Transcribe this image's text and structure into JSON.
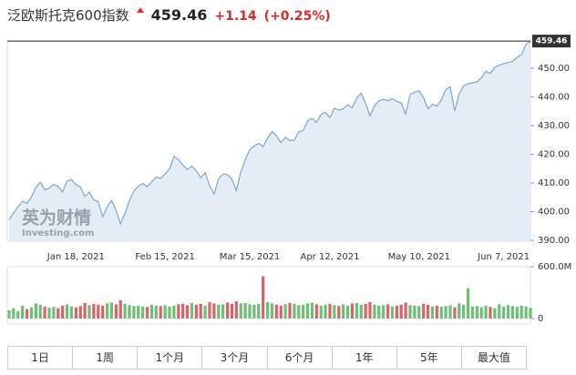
{
  "header": {
    "title": "泛欧斯托克600指数",
    "price": "459.46",
    "change": "+1.14",
    "change_pct": "(+0.25%)"
  },
  "chart_data": [
    {
      "type": "area",
      "watermark": "英为财情",
      "watermark_sub": "Investing.com",
      "categories": [
        null,
        null,
        null,
        null,
        null,
        null,
        null,
        null,
        null,
        null,
        null,
        null,
        null,
        null,
        null,
        "Jan 18, 2021",
        null,
        null,
        null,
        null,
        null,
        null,
        null,
        null,
        null,
        null,
        null,
        null,
        null,
        null,
        null,
        null,
        null,
        null,
        null,
        "Feb 15, 2021",
        null,
        null,
        null,
        null,
        null,
        null,
        null,
        null,
        null,
        null,
        null,
        null,
        null,
        null,
        null,
        null,
        null,
        null,
        "Mar 15, 2021",
        null,
        null,
        null,
        null,
        null,
        null,
        null,
        null,
        null,
        null,
        null,
        null,
        null,
        null,
        null,
        null,
        null,
        "Apr 12, 2021",
        null,
        null,
        null,
        null,
        null,
        null,
        null,
        null,
        null,
        null,
        null,
        null,
        null,
        null,
        null,
        null,
        null,
        null,
        null,
        "May 10, 2021",
        null,
        null,
        null,
        null,
        null,
        null,
        null,
        null,
        null,
        null,
        null,
        null,
        null,
        null,
        null,
        null,
        null,
        null,
        "Jun 7, 2021",
        null,
        null,
        null,
        null,
        null,
        null
      ],
      "values": [
        397.2,
        399.5,
        401.8,
        403.6,
        402.9,
        405.1,
        408.4,
        410.3,
        407.6,
        408.2,
        409.5,
        408.8,
        406.9,
        410.7,
        411.2,
        409.4,
        408.6,
        405.3,
        406.8,
        404.1,
        403.5,
        398.2,
        401.7,
        403.9,
        400.6,
        395.8,
        399.4,
        403.7,
        407.2,
        408.9,
        409.8,
        408.7,
        410.4,
        412.1,
        411.6,
        413.2,
        414.8,
        419.3,
        418.1,
        416.2,
        414.7,
        415.9,
        414.2,
        411.8,
        413.6,
        409.1,
        406.2,
        411.5,
        413.1,
        412.9,
        411.4,
        407.3,
        413.8,
        418.2,
        421.6,
        422.9,
        423.8,
        422.7,
        425.6,
        427.9,
        426.4,
        424.1,
        425.9,
        424.8,
        424.9,
        427.8,
        428.3,
        431.7,
        432.5,
        431.2,
        433.9,
        434.6,
        432.8,
        436.1,
        435.4,
        435.9,
        437.3,
        436.2,
        439.5,
        441.3,
        437.8,
        433.4,
        436.9,
        438.6,
        439.2,
        438.7,
        439.4,
        438.5,
        437.9,
        434.1,
        440.8,
        441.6,
        442.1,
        439.7,
        435.9,
        437.4,
        436.8,
        438.9,
        442.7,
        443.5,
        435.2,
        441.1,
        443.8,
        444.6,
        444.9,
        445.3,
        446.7,
        448.9,
        448.2,
        450.3,
        451.1,
        451.6,
        452.0,
        452.4,
        453.8,
        454.7,
        458.32,
        459.46
      ],
      "color": "#7ea7cb",
      "fill": "#e4edf5",
      "ylim": [
        389.7,
        459.5
      ],
      "yticks": [
        {
          "value": 390,
          "label": "390.00"
        },
        {
          "value": 400,
          "label": "400.00"
        },
        {
          "value": 410,
          "label": "410.00"
        },
        {
          "value": 420,
          "label": "420.00"
        },
        {
          "value": 430,
          "label": "430.00"
        },
        {
          "value": 440,
          "label": "440.00"
        },
        {
          "value": 450,
          "label": "450.00"
        }
      ]
    },
    {
      "type": "bar",
      "values": [
        95,
        120,
        85,
        150,
        110,
        130,
        175,
        160,
        140,
        125,
        135,
        120,
        150,
        165,
        140,
        130,
        145,
        180,
        155,
        170,
        160,
        150,
        175,
        185,
        165,
        210,
        170,
        155,
        145,
        150,
        140,
        135,
        160,
        150,
        145,
        155,
        140,
        150,
        165,
        170,
        155,
        180,
        160,
        170,
        150,
        190,
        175,
        160,
        165,
        185,
        170,
        200,
        175,
        180,
        165,
        160,
        170,
        490,
        190,
        175,
        160,
        150,
        165,
        180,
        170,
        155,
        160,
        175,
        185,
        165,
        150,
        160,
        170,
        155,
        145,
        165,
        150,
        175,
        180,
        160,
        170,
        190,
        160,
        150,
        155,
        165,
        140,
        150,
        160,
        185,
        155,
        150,
        145,
        170,
        160,
        140,
        150,
        135,
        145,
        155,
        130,
        175,
        160,
        350,
        140,
        145,
        130,
        150,
        135,
        120,
        165,
        140,
        155,
        145,
        135,
        150,
        140,
        125
      ],
      "up_color": "#6cbf74",
      "down_color": "#d9636a",
      "ylim": [
        0,
        600
      ],
      "yticks": [
        0,
        {
          "value": 600,
          "label": "600.0M"
        }
      ]
    }
  ],
  "periods": [
    "1日",
    "1周",
    "1个月",
    "3个月",
    "6个月",
    "1年",
    "5年",
    "最大值"
  ]
}
